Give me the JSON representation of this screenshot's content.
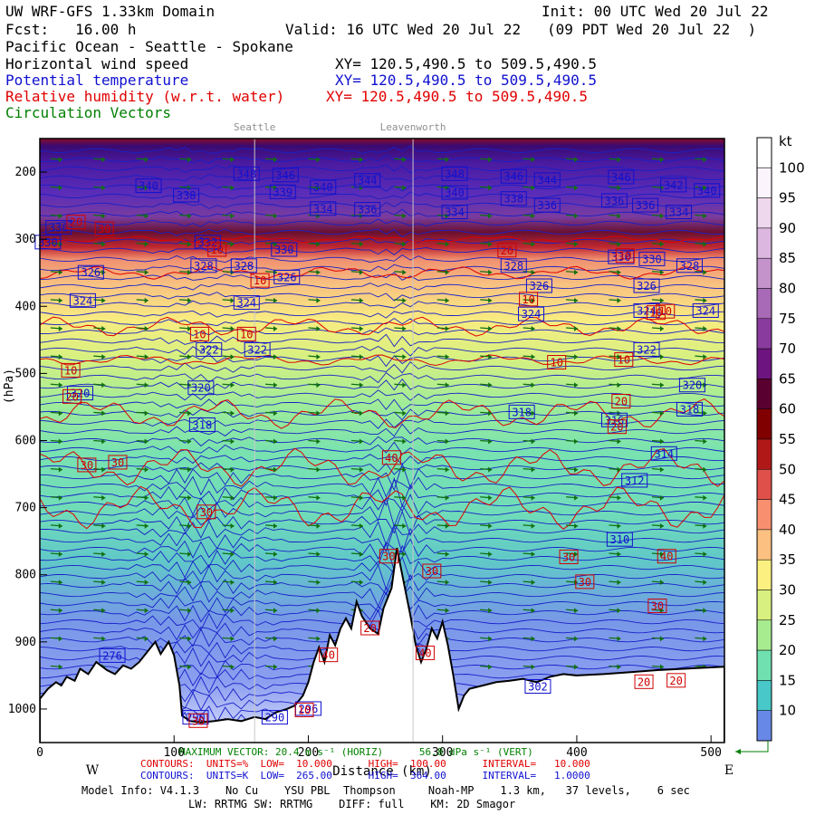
{
  "header": {
    "title": "UW WRF-GFS 1.33km Domain",
    "init": "Init: 00 UTC Wed 20 Jul 22",
    "fcst": "Fcst:   16.00 h",
    "valid": "Valid: 16 UTC Wed 20 Jul 22   (09 PDT Wed 20 Jul 22  )",
    "region": "Pacific Ocean - Seattle - Spokane",
    "fields": [
      {
        "name": "Horizontal wind speed",
        "xy": "XY= 120.5,490.5 to 509.5,490.5",
        "color": "#000000"
      },
      {
        "name": "Potential temperature",
        "xy": "XY= 120.5,490.5 to 509.5,490.5",
        "color": "#1010d0"
      },
      {
        "name": "Relative humidity (w.r.t. water)",
        "xy": "XY= 120.5,490.5 to 509.5,490.5",
        "color": "#e00000"
      },
      {
        "name": "Circulation Vectors",
        "xy": "",
        "color": "#008000"
      }
    ]
  },
  "locations": [
    "Seattle",
    "Leavenworth"
  ],
  "chart_data": {
    "type": "heatmap",
    "xlabel": "Distance (km)",
    "ylabel": "(hPa)",
    "xlim": [
      0,
      510
    ],
    "ylim": [
      1050,
      150
    ],
    "x_ticks": [
      0,
      100,
      200,
      300,
      400,
      500
    ],
    "y_ticks": [
      200,
      300,
      400,
      500,
      600,
      700,
      800,
      900,
      1000
    ],
    "x_end_labels": {
      "west": "W",
      "east": "E"
    },
    "colorbar": {
      "unit": "kt",
      "levels": [
        100,
        95,
        90,
        85,
        80,
        75,
        70,
        65,
        60,
        55,
        50,
        45,
        40,
        35,
        30,
        25,
        20,
        15,
        10
      ],
      "colors": [
        "#fcf4fc",
        "#eed8ee",
        "#dcb8e0",
        "#c493cc",
        "#a86ab6",
        "#8a3c9e",
        "#6e1480",
        "#5a0030",
        "#800000",
        "#b01818",
        "#e0504a",
        "#f89070",
        "#fcc080",
        "#fcf080",
        "#d8f080",
        "#a8ec90",
        "#70e0b0",
        "#48c8c8",
        "#6888e8"
      ]
    },
    "theta_labels": [
      {
        "x": 38,
        "p": 350,
        "v": "326"
      },
      {
        "x": 6,
        "p": 305,
        "v": "330"
      },
      {
        "x": 14,
        "p": 283,
        "v": "330"
      },
      {
        "x": 109,
        "p": 235,
        "v": "338"
      },
      {
        "x": 81,
        "p": 221,
        "v": "340"
      },
      {
        "x": 154,
        "p": 203,
        "v": "348"
      },
      {
        "x": 183,
        "p": 205,
        "v": "346"
      },
      {
        "x": 181,
        "p": 230,
        "v": "339"
      },
      {
        "x": 211,
        "p": 223,
        "v": "340"
      },
      {
        "x": 211,
        "p": 255,
        "v": "334"
      },
      {
        "x": 244,
        "p": 213,
        "v": "344"
      },
      {
        "x": 244,
        "p": 256,
        "v": "336"
      },
      {
        "x": 309,
        "p": 203,
        "v": "348"
      },
      {
        "x": 309,
        "p": 231,
        "v": "340"
      },
      {
        "x": 309,
        "p": 260,
        "v": "334"
      },
      {
        "x": 353,
        "p": 207,
        "v": "346"
      },
      {
        "x": 353,
        "p": 240,
        "v": "338"
      },
      {
        "x": 378,
        "p": 212,
        "v": "344"
      },
      {
        "x": 378,
        "p": 250,
        "v": "336"
      },
      {
        "x": 433,
        "p": 208,
        "v": "346"
      },
      {
        "x": 428,
        "p": 243,
        "v": "336"
      },
      {
        "x": 451,
        "p": 250,
        "v": "336"
      },
      {
        "x": 472,
        "p": 220,
        "v": "342"
      },
      {
        "x": 476,
        "p": 260,
        "v": "334"
      },
      {
        "x": 497,
        "p": 228,
        "v": "340"
      },
      {
        "x": 125,
        "p": 305,
        "v": "332"
      },
      {
        "x": 182,
        "p": 316,
        "v": "330"
      },
      {
        "x": 122,
        "p": 340,
        "v": "328"
      },
      {
        "x": 152,
        "p": 340,
        "v": "328"
      },
      {
        "x": 184,
        "p": 357,
        "v": "326"
      },
      {
        "x": 353,
        "p": 340,
        "v": "328"
      },
      {
        "x": 372,
        "p": 370,
        "v": "326"
      },
      {
        "x": 452,
        "p": 370,
        "v": "326"
      },
      {
        "x": 433,
        "p": 327,
        "v": "330"
      },
      {
        "x": 456,
        "p": 330,
        "v": "330"
      },
      {
        "x": 484,
        "p": 340,
        "v": "328"
      },
      {
        "x": 32,
        "p": 392,
        "v": "324"
      },
      {
        "x": 154,
        "p": 395,
        "v": "324"
      },
      {
        "x": 366,
        "p": 412,
        "v": "324"
      },
      {
        "x": 452,
        "p": 407,
        "v": "324"
      },
      {
        "x": 496,
        "p": 407,
        "v": "324"
      },
      {
        "x": 126,
        "p": 465,
        "v": "322"
      },
      {
        "x": 162,
        "p": 465,
        "v": "322"
      },
      {
        "x": 452,
        "p": 465,
        "v": "322"
      },
      {
        "x": 30,
        "p": 530,
        "v": "320"
      },
      {
        "x": 120,
        "p": 522,
        "v": "320"
      },
      {
        "x": 486,
        "p": 518,
        "v": "320"
      },
      {
        "x": 121,
        "p": 577,
        "v": "318"
      },
      {
        "x": 359,
        "p": 558,
        "v": "318"
      },
      {
        "x": 484,
        "p": 554,
        "v": "318"
      },
      {
        "x": 428,
        "p": 570,
        "v": "316"
      },
      {
        "x": 465,
        "p": 620,
        "v": "314"
      },
      {
        "x": 443,
        "p": 660,
        "v": "312"
      },
      {
        "x": 432,
        "p": 748,
        "v": "310"
      },
      {
        "x": 54,
        "p": 921,
        "v": "276"
      },
      {
        "x": 116,
        "p": 1013,
        "v": "290"
      },
      {
        "x": 175,
        "p": 1013,
        "v": "290"
      },
      {
        "x": 200,
        "p": 1000,
        "v": "296"
      },
      {
        "x": 371,
        "p": 967,
        "v": "302"
      }
    ],
    "rh_labels": [
      {
        "x": 27,
        "p": 275,
        "v": "20"
      },
      {
        "x": 48,
        "p": 285,
        "v": "30"
      },
      {
        "x": 132,
        "p": 316,
        "v": "10"
      },
      {
        "x": 164,
        "p": 362,
        "v": "10"
      },
      {
        "x": 119,
        "p": 442,
        "v": "10"
      },
      {
        "x": 154,
        "p": 442,
        "v": "10"
      },
      {
        "x": 23,
        "p": 496,
        "v": "10"
      },
      {
        "x": 24,
        "p": 535,
        "v": "20"
      },
      {
        "x": 35,
        "p": 637,
        "v": "30"
      },
      {
        "x": 58,
        "p": 633,
        "v": "30"
      },
      {
        "x": 124,
        "p": 707,
        "v": "30"
      },
      {
        "x": 364,
        "p": 390,
        "v": "10"
      },
      {
        "x": 385,
        "p": 484,
        "v": "10"
      },
      {
        "x": 435,
        "p": 480,
        "v": "10"
      },
      {
        "x": 459,
        "p": 410,
        "v": "10"
      },
      {
        "x": 466,
        "p": 408,
        "v": "10"
      },
      {
        "x": 436,
        "p": 325,
        "v": "10"
      },
      {
        "x": 348,
        "p": 317,
        "v": "20"
      },
      {
        "x": 433,
        "p": 542,
        "v": "20"
      },
      {
        "x": 430,
        "p": 580,
        "v": "20"
      },
      {
        "x": 262,
        "p": 626,
        "v": "40"
      },
      {
        "x": 260,
        "p": 773,
        "v": "30"
      },
      {
        "x": 292,
        "p": 795,
        "v": "30"
      },
      {
        "x": 394,
        "p": 774,
        "v": "30"
      },
      {
        "x": 406,
        "p": 811,
        "v": "30"
      },
      {
        "x": 460,
        "p": 847,
        "v": "30"
      },
      {
        "x": 467,
        "p": 773,
        "v": "40"
      },
      {
        "x": 246,
        "p": 880,
        "v": "20"
      },
      {
        "x": 215,
        "p": 920,
        "v": "40"
      },
      {
        "x": 287,
        "p": 917,
        "v": "40"
      },
      {
        "x": 450,
        "p": 960,
        "v": "20"
      },
      {
        "x": 474,
        "p": 958,
        "v": "20"
      },
      {
        "x": 118,
        "p": 1018,
        "v": "30"
      },
      {
        "x": 197,
        "p": 1002,
        "v": "10"
      }
    ],
    "terrain": [
      [
        0,
        985
      ],
      [
        6,
        970
      ],
      [
        12,
        960
      ],
      [
        16,
        965
      ],
      [
        20,
        952
      ],
      [
        26,
        958
      ],
      [
        30,
        940
      ],
      [
        36,
        948
      ],
      [
        42,
        930
      ],
      [
        50,
        942
      ],
      [
        56,
        948
      ],
      [
        62,
        935
      ],
      [
        68,
        940
      ],
      [
        74,
        930
      ],
      [
        80,
        915
      ],
      [
        86,
        900
      ],
      [
        90,
        918
      ],
      [
        96,
        900
      ],
      [
        100,
        920
      ],
      [
        104,
        965
      ],
      [
        106,
        1010
      ],
      [
        112,
        1018
      ],
      [
        120,
        1020
      ],
      [
        130,
        1018
      ],
      [
        140,
        1015
      ],
      [
        150,
        1018
      ],
      [
        160,
        1012
      ],
      [
        168,
        1015
      ],
      [
        176,
        1005
      ],
      [
        184,
        1000
      ],
      [
        190,
        995
      ],
      [
        196,
        980
      ],
      [
        200,
        960
      ],
      [
        204,
        930
      ],
      [
        208,
        908
      ],
      [
        212,
        930
      ],
      [
        216,
        890
      ],
      [
        220,
        905
      ],
      [
        224,
        880
      ],
      [
        228,
        865
      ],
      [
        232,
        880
      ],
      [
        236,
        840
      ],
      [
        240,
        862
      ],
      [
        246,
        880
      ],
      [
        252,
        888
      ],
      [
        256,
        850
      ],
      [
        262,
        820
      ],
      [
        266,
        760
      ],
      [
        270,
        800
      ],
      [
        276,
        860
      ],
      [
        280,
        905
      ],
      [
        284,
        930
      ],
      [
        288,
        910
      ],
      [
        292,
        880
      ],
      [
        296,
        895
      ],
      [
        300,
        870
      ],
      [
        304,
        905
      ],
      [
        308,
        950
      ],
      [
        312,
        1000
      ],
      [
        316,
        980
      ],
      [
        320,
        970
      ],
      [
        330,
        965
      ],
      [
        340,
        960
      ],
      [
        350,
        958
      ],
      [
        360,
        955
      ],
      [
        370,
        960
      ],
      [
        380,
        952
      ],
      [
        390,
        948
      ],
      [
        400,
        950
      ],
      [
        420,
        948
      ],
      [
        440,
        945
      ],
      [
        460,
        942
      ],
      [
        480,
        940
      ],
      [
        500,
        938
      ],
      [
        510,
        937
      ]
    ]
  },
  "footer": {
    "max_vector": "MAXIMUM VECTOR: 20.4 m s⁻¹ (HORIZ)      56.8 dPa s⁻¹ (VERT)",
    "contours_rh": "CONTOURS:  UNITS=%  LOW=  10.000      HIGH=  100.00      INTERVAL=   10.000",
    "contours_theta": "CONTOURS:  UNITS=K  LOW=  265.00      HIGH=  364.00      INTERVAL=   1.0000",
    "model_info": "Model Info: V4.1.3    No Cu    YSU PBL  Thompson     Noah-MP    1.3 km,   37 levels,    6 sec",
    "model_info2": "LW: RRTMG SW: RRTMG    DIFF: full    KM: 2D Smagor"
  }
}
